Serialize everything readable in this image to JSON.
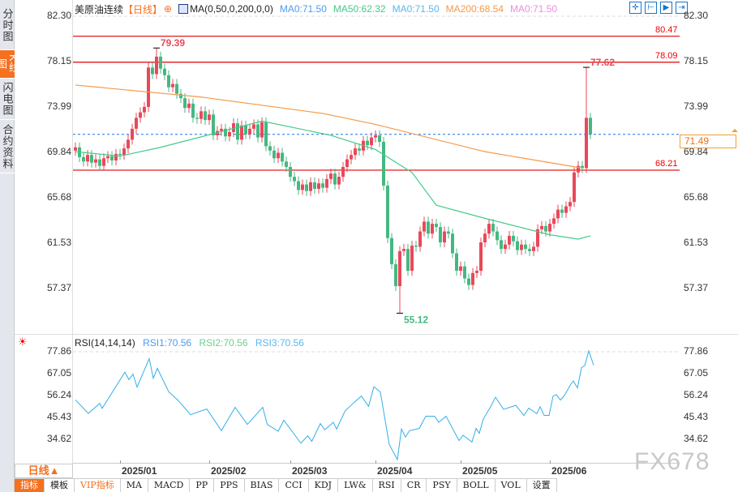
{
  "sidebar": {
    "items": [
      {
        "label": "分时图"
      },
      {
        "label": "K线图",
        "active": true
      },
      {
        "label": "闪电图"
      },
      {
        "label": "合约资料"
      }
    ]
  },
  "header": {
    "symbol": "美原油连续",
    "period": "【日线】",
    "add_icon": "plus-circle-icon",
    "indicator": "MA(0,50,0,200,0,0)",
    "ma_values": [
      {
        "label": "MA0:71.50",
        "color": "#4d9bf0"
      },
      {
        "label": "MA50:62.32",
        "color": "#45c98a"
      },
      {
        "label": "MA0:71.50",
        "color": "#5ab8ee"
      },
      {
        "label": "MA200:68.54",
        "color": "#f59a4a"
      },
      {
        "label": "MA0:71.50",
        "color": "#ee8de0"
      }
    ]
  },
  "toolbar": {
    "icons": [
      "crosshair-icon",
      "zoom-range-icon",
      "play-icon",
      "goto-end-icon"
    ]
  },
  "price_axis": {
    "labels": [
      "82.30",
      "78.15",
      "73.99",
      "69.84",
      "65.68",
      "61.53",
      "57.37"
    ]
  },
  "levels": [
    {
      "label": "80.47",
      "value": 80.47
    },
    {
      "label": "78.09",
      "value": 78.09
    },
    {
      "label": "68.21",
      "value": 68.21
    }
  ],
  "current_price": {
    "label": "71.49",
    "value": 71.49
  },
  "annotations": {
    "high": {
      "label": "79.39",
      "value": 79.39,
      "index": 20
    },
    "recent_high": {
      "label": "77.62",
      "value": 77.62,
      "index": 126
    },
    "low": {
      "label": "55.12",
      "value": 55.12,
      "index": 80
    }
  },
  "rsi": {
    "title": "RSI(14,14,14)",
    "values": [
      {
        "label": "RSI1:70.56",
        "color": "#4d9bf0"
      },
      {
        "label": "RSI2:70.56",
        "color": "#6cd08a"
      },
      {
        "label": "RSI3:70.56",
        "color": "#5ab8ee"
      }
    ],
    "axis_labels": [
      "77.86",
      "67.05",
      "56.24",
      "45.43",
      "34.62"
    ]
  },
  "date_axis": {
    "labels": [
      {
        "label": "2025/01",
        "index": 11
      },
      {
        "label": "2025/02",
        "index": 33
      },
      {
        "label": "2025/03",
        "index": 53
      },
      {
        "label": "2025/04",
        "index": 74
      },
      {
        "label": "2025/05",
        "index": 95
      },
      {
        "label": "2025/06",
        "index": 117
      }
    ]
  },
  "period_button": "日线▲",
  "tabs": [
    {
      "label": "指标",
      "active": true
    },
    {
      "label": "模板"
    },
    {
      "label": "VIP指标",
      "vip": true
    },
    {
      "label": "MA"
    },
    {
      "label": "MACD"
    },
    {
      "label": "PP"
    },
    {
      "label": "PPS"
    },
    {
      "label": "BIAS"
    },
    {
      "label": "CCI"
    },
    {
      "label": "KDJ"
    },
    {
      "label": "LW&"
    },
    {
      "label": "RSI"
    },
    {
      "label": "CR"
    },
    {
      "label": "PSY"
    },
    {
      "label": "BOLL"
    },
    {
      "label": "VOL"
    },
    {
      "label": "设置"
    }
  ],
  "watermark": "FX678",
  "colors": {
    "up": "#e8495a",
    "down": "#45b882",
    "level": "#e00000",
    "ma50": "#45c98a",
    "ma200": "#f59a4a",
    "rsi": "#33aee8",
    "current": "#1a73e8",
    "accent": "#f5701f"
  },
  "chart_data": [
    {
      "type": "candlestick",
      "ylim": [
        55,
        82.3
      ],
      "open_first": 70.0,
      "close": [
        70.3,
        69.4,
        69.0,
        69.6,
        68.9,
        69.2,
        68.6,
        69.3,
        69.5,
        69.1,
        69.7,
        69.6,
        70.2,
        71.0,
        72.0,
        73.0,
        73.5,
        74.0,
        77.6,
        77.0,
        78.6,
        77.5,
        76.9,
        75.8,
        76.1,
        75.2,
        74.8,
        73.9,
        74.3,
        73.0,
        72.9,
        73.6,
        72.8,
        73.3,
        71.4,
        71.8,
        72.0,
        71.3,
        71.7,
        72.5,
        71.0,
        72.3,
        71.5,
        72.0,
        72.4,
        71.2,
        72.6,
        70.4,
        70.0,
        69.3,
        69.8,
        69.0,
        68.5,
        67.6,
        67.2,
        66.4,
        66.9,
        66.3,
        67.1,
        66.5,
        67.0,
        66.6,
        67.4,
        67.9,
        66.9,
        67.6,
        68.5,
        69.2,
        69.6,
        70.2,
        70.0,
        70.9,
        70.5,
        71.2,
        71.4,
        70.8,
        66.8,
        62.0,
        59.6,
        57.6,
        60.8,
        61.0,
        59.0,
        61.3,
        61.2,
        62.6,
        63.5,
        62.4,
        63.3,
        63.0,
        61.6,
        62.6,
        62.4,
        60.6,
        59.0,
        59.4,
        58.3,
        57.7,
        58.8,
        59.0,
        61.6,
        62.4,
        63.3,
        62.6,
        61.8,
        61.0,
        61.4,
        62.2,
        61.7,
        60.9,
        61.4,
        61.0,
        60.8,
        61.2,
        62.8,
        63.1,
        62.6,
        63.3,
        63.8,
        64.6,
        64.3,
        64.9,
        65.3,
        68.0,
        68.6,
        68.4,
        73.0,
        71.5
      ],
      "series": [
        {
          "name": "MA50",
          "points": [
            [
              0,
              69.9
            ],
            [
              11,
              69.5
            ],
            [
              21,
              70.3
            ],
            [
              46,
              72.7
            ],
            [
              63,
              71.4
            ],
            [
              74,
              70.1
            ],
            [
              83,
              68.0
            ],
            [
              89,
              65.0
            ],
            [
              101,
              63.8
            ],
            [
              117,
              62.3
            ],
            [
              124,
              61.9
            ],
            [
              127,
              62.2
            ]
          ]
        },
        {
          "name": "MA200",
          "points": [
            [
              0,
              76.0
            ],
            [
              31,
              74.9
            ],
            [
              61,
              73.4
            ],
            [
              74,
              72.4
            ],
            [
              101,
              69.9
            ],
            [
              125,
              68.4
            ]
          ]
        }
      ]
    },
    {
      "type": "line",
      "name": "RSI",
      "ylim": [
        20,
        80
      ],
      "points": [
        [
          0,
          54.1
        ],
        [
          3.2,
          47.4
        ],
        [
          6,
          52.4
        ],
        [
          6.6,
          49.9
        ],
        [
          12.2,
          67.8
        ],
        [
          13.2,
          64.1
        ],
        [
          14.2,
          66.8
        ],
        [
          15.2,
          60.4
        ],
        [
          18.2,
          74.5
        ],
        [
          19.2,
          64.8
        ],
        [
          20.2,
          69.7
        ],
        [
          23,
          58.1
        ],
        [
          25.2,
          54.1
        ],
        [
          28.4,
          46.8
        ],
        [
          32.4,
          49.6
        ],
        [
          36,
          38.9
        ],
        [
          39.4,
          50.4
        ],
        [
          42.4,
          42
        ],
        [
          46.2,
          50.4
        ],
        [
          47.3,
          42
        ],
        [
          50,
          38.6
        ],
        [
          51.4,
          44
        ],
        [
          55.6,
          32.7
        ],
        [
          57.3,
          36.3
        ],
        [
          58.3,
          33.6
        ],
        [
          60.4,
          42.4
        ],
        [
          61.5,
          39.3
        ],
        [
          63.6,
          43
        ],
        [
          64.4,
          39.7
        ],
        [
          66.5,
          48.6
        ],
        [
          68.6,
          52.6
        ],
        [
          70.5,
          56
        ],
        [
          72.3,
          50.9
        ],
        [
          73.6,
          60.6
        ],
        [
          75.2,
          58
        ],
        [
          77.4,
          32
        ],
        [
          79.4,
          24.6
        ],
        [
          80.4,
          39.7
        ],
        [
          81.4,
          35.7
        ],
        [
          82.4,
          38.9
        ],
        [
          84.8,
          40
        ],
        [
          86.4,
          46
        ],
        [
          88.6,
          46
        ],
        [
          89.6,
          43
        ],
        [
          91.4,
          46
        ],
        [
          94.6,
          34
        ],
        [
          95.6,
          36.6
        ],
        [
          97.8,
          33.3
        ],
        [
          98.8,
          40
        ],
        [
          99.6,
          37.6
        ],
        [
          100.6,
          44.7
        ],
        [
          102.4,
          50.7
        ],
        [
          103.6,
          55.4
        ],
        [
          105.6,
          49.4
        ],
        [
          108.6,
          51.4
        ],
        [
          110.6,
          46.4
        ],
        [
          111.8,
          50
        ],
        [
          113.8,
          47.3
        ],
        [
          114.6,
          50.7
        ],
        [
          115.6,
          46.4
        ],
        [
          116.8,
          46.4
        ],
        [
          117.8,
          56
        ],
        [
          118.6,
          56.7
        ],
        [
          119.6,
          54
        ],
        [
          120.6,
          56.3
        ],
        [
          122.2,
          62
        ],
        [
          122.8,
          63.4
        ],
        [
          123.8,
          60
        ],
        [
          124.8,
          70
        ],
        [
          125.6,
          71
        ],
        [
          126.6,
          78.3
        ],
        [
          127.8,
          71.2
        ]
      ]
    }
  ]
}
